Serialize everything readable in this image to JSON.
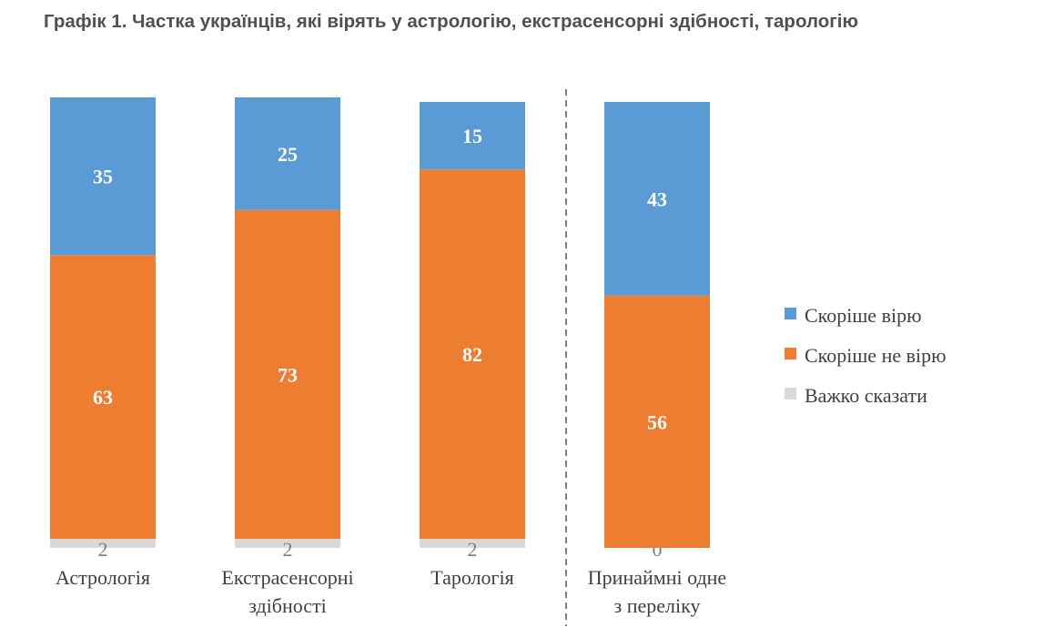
{
  "chart_data": {
    "type": "bar",
    "stacked": true,
    "percent": true,
    "title": "Графік 1. Частка українців, які вірять у астрологію, екстрасенсорні здібності, тарологію",
    "categories": [
      [
        "Астрологія"
      ],
      [
        "Екстрасенсорні",
        "здібності"
      ],
      [
        "Тарологія"
      ],
      [
        "Принаймні одне",
        "з переліку"
      ]
    ],
    "series": [
      {
        "name": "Важко сказати",
        "values": [
          2,
          2,
          2,
          0
        ],
        "color": "#d9d9d9"
      },
      {
        "name": "Скоріше не вірю",
        "values": [
          63,
          73,
          82,
          56
        ],
        "color": "#ed7d31"
      },
      {
        "name": "Скоріше вірю",
        "values": [
          35,
          25,
          15,
          43
        ],
        "color": "#5b9bd5"
      }
    ],
    "legend": {
      "placement": "right",
      "items": [
        "Скоріше вірю",
        "Скоріше не вірю",
        "Важко сказати"
      ]
    },
    "separator_before_last": true,
    "ylim": [
      0,
      100
    ]
  }
}
